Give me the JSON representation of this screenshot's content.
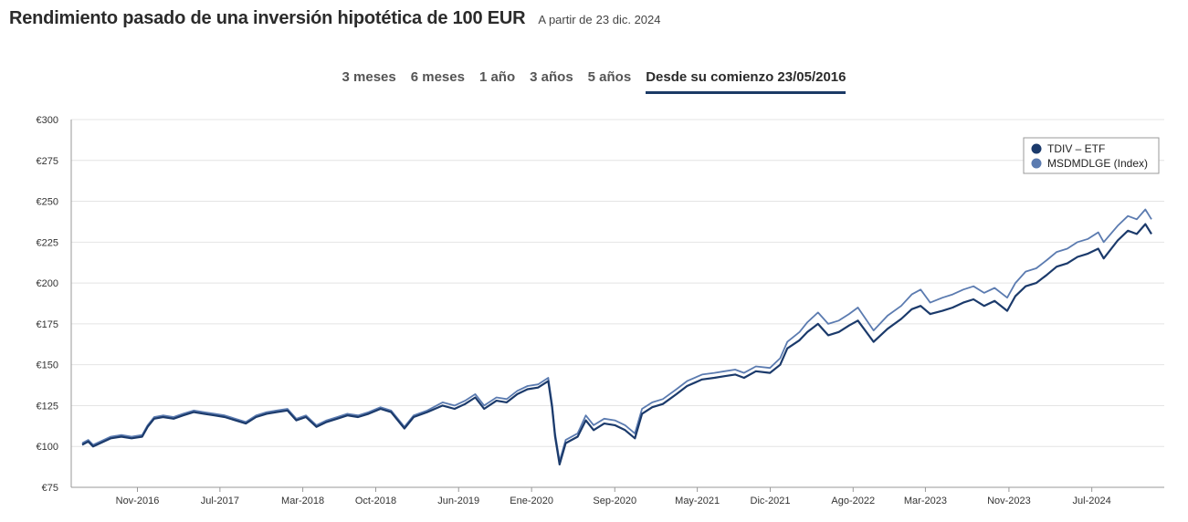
{
  "header": {
    "title": "Rendimiento pasado de una inversión hipotética de 100 EUR",
    "as_of_label": "A partir de",
    "as_of_date": "23 dic. 2024"
  },
  "tabs": [
    {
      "label": "3 meses",
      "active": false
    },
    {
      "label": "6 meses",
      "active": false
    },
    {
      "label": "1 año",
      "active": false
    },
    {
      "label": "3 años",
      "active": false
    },
    {
      "label": "5 años",
      "active": false
    },
    {
      "label": "Desde su comienzo 23/05/2016",
      "active": true
    }
  ],
  "colors": {
    "etf": "#1b3a6b",
    "index": "#5b7bb0",
    "grid": "#e4e4e4",
    "tab_underline": "#1b3a66"
  },
  "chart_data": {
    "type": "line",
    "ylim": [
      75,
      300
    ],
    "y_ticks": [
      "€75",
      "€100",
      "€125",
      "€150",
      "€175",
      "€200",
      "€225",
      "€250",
      "€275",
      "€300"
    ],
    "y_tick_values": [
      75,
      100,
      125,
      150,
      175,
      200,
      225,
      250,
      275,
      300
    ],
    "x_ticks": [
      "Nov-2016",
      "Jul-2017",
      "Mar-2018",
      "Oct-2018",
      "Jun-2019",
      "Ene-2020",
      "Sep-2020",
      "May-2021",
      "Dic-2021",
      "Ago-2022",
      "Mar-2023",
      "Nov-2023",
      "Jul-2024"
    ],
    "x_tick_dates": [
      "2016-11-01",
      "2017-07-01",
      "2018-03-01",
      "2018-10-01",
      "2019-06-01",
      "2020-01-01",
      "2020-09-01",
      "2021-05-01",
      "2021-12-01",
      "2022-08-01",
      "2023-03-01",
      "2023-11-01",
      "2024-07-01"
    ],
    "xlim": [
      "2016-05-23",
      "2024-12-23"
    ],
    "legend_position": "top-right",
    "series": [
      {
        "name": "TDIV – ETF",
        "points": [
          [
            "2016-05-23",
            101
          ],
          [
            "2016-06-10",
            103
          ],
          [
            "2016-06-24",
            100
          ],
          [
            "2016-07-15",
            102
          ],
          [
            "2016-08-15",
            105
          ],
          [
            "2016-09-15",
            106
          ],
          [
            "2016-10-15",
            105
          ],
          [
            "2016-11-15",
            106
          ],
          [
            "2016-12-01",
            112
          ],
          [
            "2016-12-20",
            117
          ],
          [
            "2017-01-15",
            118
          ],
          [
            "2017-02-15",
            117
          ],
          [
            "2017-03-15",
            119
          ],
          [
            "2017-04-15",
            121
          ],
          [
            "2017-05-15",
            120
          ],
          [
            "2017-06-15",
            119
          ],
          [
            "2017-07-15",
            118
          ],
          [
            "2017-08-15",
            116
          ],
          [
            "2017-09-15",
            114
          ],
          [
            "2017-10-15",
            118
          ],
          [
            "2017-11-15",
            120
          ],
          [
            "2017-12-15",
            121
          ],
          [
            "2018-01-15",
            122
          ],
          [
            "2018-02-10",
            116
          ],
          [
            "2018-03-10",
            118
          ],
          [
            "2018-04-10",
            112
          ],
          [
            "2018-05-10",
            115
          ],
          [
            "2018-06-10",
            117
          ],
          [
            "2018-07-10",
            119
          ],
          [
            "2018-08-10",
            118
          ],
          [
            "2018-09-10",
            120
          ],
          [
            "2018-10-15",
            123
          ],
          [
            "2018-11-15",
            121
          ],
          [
            "2018-12-24",
            111
          ],
          [
            "2019-01-20",
            118
          ],
          [
            "2019-03-01",
            121
          ],
          [
            "2019-04-15",
            125
          ],
          [
            "2019-05-20",
            123
          ],
          [
            "2019-06-20",
            126
          ],
          [
            "2019-07-20",
            130
          ],
          [
            "2019-08-15",
            123
          ],
          [
            "2019-09-20",
            128
          ],
          [
            "2019-10-20",
            127
          ],
          [
            "2019-11-20",
            132
          ],
          [
            "2019-12-20",
            135
          ],
          [
            "2020-01-20",
            136
          ],
          [
            "2020-02-19",
            140
          ],
          [
            "2020-03-01",
            124
          ],
          [
            "2020-03-10",
            106
          ],
          [
            "2020-03-23",
            89
          ],
          [
            "2020-04-10",
            102
          ],
          [
            "2020-05-15",
            106
          ],
          [
            "2020-06-08",
            116
          ],
          [
            "2020-07-01",
            110
          ],
          [
            "2020-08-01",
            114
          ],
          [
            "2020-09-01",
            113
          ],
          [
            "2020-10-01",
            110
          ],
          [
            "2020-10-30",
            105
          ],
          [
            "2020-11-20",
            120
          ],
          [
            "2020-12-20",
            124
          ],
          [
            "2021-01-20",
            126
          ],
          [
            "2021-03-01",
            132
          ],
          [
            "2021-04-01",
            137
          ],
          [
            "2021-05-15",
            141
          ],
          [
            "2021-06-20",
            142
          ],
          [
            "2021-07-20",
            143
          ],
          [
            "2021-08-20",
            144
          ],
          [
            "2021-09-15",
            142
          ],
          [
            "2021-10-20",
            146
          ],
          [
            "2021-11-30",
            145
          ],
          [
            "2021-12-30",
            150
          ],
          [
            "2022-01-20",
            160
          ],
          [
            "2022-02-25",
            165
          ],
          [
            "2022-03-20",
            170
          ],
          [
            "2022-04-20",
            175
          ],
          [
            "2022-05-20",
            168
          ],
          [
            "2022-06-20",
            170
          ],
          [
            "2022-07-20",
            174
          ],
          [
            "2022-08-15",
            177
          ],
          [
            "2022-09-30",
            164
          ],
          [
            "2022-11-10",
            172
          ],
          [
            "2022-12-20",
            178
          ],
          [
            "2023-01-20",
            184
          ],
          [
            "2023-02-15",
            186
          ],
          [
            "2023-03-15",
            181
          ],
          [
            "2023-04-20",
            183
          ],
          [
            "2023-05-20",
            185
          ],
          [
            "2023-06-20",
            188
          ],
          [
            "2023-07-20",
            190
          ],
          [
            "2023-08-20",
            186
          ],
          [
            "2023-09-20",
            189
          ],
          [
            "2023-10-27",
            183
          ],
          [
            "2023-11-20",
            192
          ],
          [
            "2023-12-20",
            198
          ],
          [
            "2024-01-20",
            200
          ],
          [
            "2024-02-20",
            205
          ],
          [
            "2024-03-20",
            210
          ],
          [
            "2024-04-20",
            212
          ],
          [
            "2024-05-20",
            216
          ],
          [
            "2024-06-20",
            218
          ],
          [
            "2024-07-20",
            221
          ],
          [
            "2024-08-05",
            215
          ],
          [
            "2024-09-15",
            226
          ],
          [
            "2024-10-15",
            232
          ],
          [
            "2024-11-10",
            230
          ],
          [
            "2024-12-05",
            236
          ],
          [
            "2024-12-23",
            230
          ]
        ]
      },
      {
        "name": "MSDMDLGE (Index)",
        "points": [
          [
            "2016-05-23",
            102
          ],
          [
            "2016-06-10",
            104
          ],
          [
            "2016-06-24",
            101
          ],
          [
            "2016-07-15",
            103
          ],
          [
            "2016-08-15",
            106
          ],
          [
            "2016-09-15",
            107
          ],
          [
            "2016-10-15",
            106
          ],
          [
            "2016-11-15",
            107
          ],
          [
            "2016-12-01",
            113
          ],
          [
            "2016-12-20",
            118
          ],
          [
            "2017-01-15",
            119
          ],
          [
            "2017-02-15",
            118
          ],
          [
            "2017-03-15",
            120
          ],
          [
            "2017-04-15",
            122
          ],
          [
            "2017-05-15",
            121
          ],
          [
            "2017-06-15",
            120
          ],
          [
            "2017-07-15",
            119
          ],
          [
            "2017-08-15",
            117
          ],
          [
            "2017-09-15",
            115
          ],
          [
            "2017-10-15",
            119
          ],
          [
            "2017-11-15",
            121
          ],
          [
            "2017-12-15",
            122
          ],
          [
            "2018-01-15",
            123
          ],
          [
            "2018-02-10",
            117
          ],
          [
            "2018-03-10",
            119
          ],
          [
            "2018-04-10",
            113
          ],
          [
            "2018-05-10",
            116
          ],
          [
            "2018-06-10",
            118
          ],
          [
            "2018-07-10",
            120
          ],
          [
            "2018-08-10",
            119
          ],
          [
            "2018-09-10",
            121
          ],
          [
            "2018-10-15",
            124
          ],
          [
            "2018-11-15",
            122
          ],
          [
            "2018-12-24",
            112
          ],
          [
            "2019-01-20",
            119
          ],
          [
            "2019-03-01",
            122
          ],
          [
            "2019-04-15",
            127
          ],
          [
            "2019-05-20",
            125
          ],
          [
            "2019-06-20",
            128
          ],
          [
            "2019-07-20",
            132
          ],
          [
            "2019-08-15",
            125
          ],
          [
            "2019-09-20",
            130
          ],
          [
            "2019-10-20",
            129
          ],
          [
            "2019-11-20",
            134
          ],
          [
            "2019-12-20",
            137
          ],
          [
            "2020-01-20",
            138
          ],
          [
            "2020-02-19",
            142
          ],
          [
            "2020-03-01",
            126
          ],
          [
            "2020-03-10",
            108
          ],
          [
            "2020-03-23",
            91
          ],
          [
            "2020-04-10",
            104
          ],
          [
            "2020-05-15",
            108
          ],
          [
            "2020-06-08",
            119
          ],
          [
            "2020-07-01",
            113
          ],
          [
            "2020-08-01",
            117
          ],
          [
            "2020-09-01",
            116
          ],
          [
            "2020-10-01",
            113
          ],
          [
            "2020-10-30",
            108
          ],
          [
            "2020-11-20",
            123
          ],
          [
            "2020-12-20",
            127
          ],
          [
            "2021-01-20",
            129
          ],
          [
            "2021-03-01",
            135
          ],
          [
            "2021-04-01",
            140
          ],
          [
            "2021-05-15",
            144
          ],
          [
            "2021-06-20",
            145
          ],
          [
            "2021-07-20",
            146
          ],
          [
            "2021-08-20",
            147
          ],
          [
            "2021-09-15",
            145
          ],
          [
            "2021-10-20",
            149
          ],
          [
            "2021-11-30",
            148
          ],
          [
            "2021-12-30",
            154
          ],
          [
            "2022-01-20",
            164
          ],
          [
            "2022-02-25",
            170
          ],
          [
            "2022-03-20",
            176
          ],
          [
            "2022-04-20",
            182
          ],
          [
            "2022-05-20",
            175
          ],
          [
            "2022-06-20",
            177
          ],
          [
            "2022-07-20",
            181
          ],
          [
            "2022-08-15",
            185
          ],
          [
            "2022-09-30",
            171
          ],
          [
            "2022-11-10",
            180
          ],
          [
            "2022-12-20",
            186
          ],
          [
            "2023-01-20",
            193
          ],
          [
            "2023-02-15",
            196
          ],
          [
            "2023-03-15",
            188
          ],
          [
            "2023-04-20",
            191
          ],
          [
            "2023-05-20",
            193
          ],
          [
            "2023-06-20",
            196
          ],
          [
            "2023-07-20",
            198
          ],
          [
            "2023-08-20",
            194
          ],
          [
            "2023-09-20",
            197
          ],
          [
            "2023-10-27",
            191
          ],
          [
            "2023-11-20",
            200
          ],
          [
            "2023-12-20",
            207
          ],
          [
            "2024-01-20",
            209
          ],
          [
            "2024-02-20",
            214
          ],
          [
            "2024-03-20",
            219
          ],
          [
            "2024-04-20",
            221
          ],
          [
            "2024-05-20",
            225
          ],
          [
            "2024-06-20",
            227
          ],
          [
            "2024-07-20",
            231
          ],
          [
            "2024-08-05",
            225
          ],
          [
            "2024-09-15",
            235
          ],
          [
            "2024-10-15",
            241
          ],
          [
            "2024-11-10",
            239
          ],
          [
            "2024-12-05",
            245
          ],
          [
            "2024-12-23",
            239
          ]
        ]
      }
    ]
  }
}
